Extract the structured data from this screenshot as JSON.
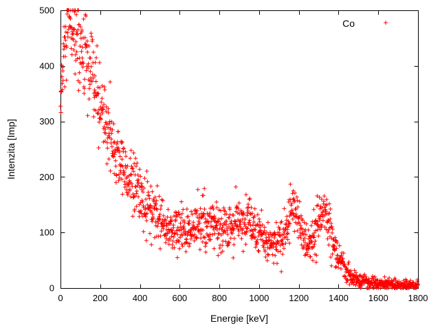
{
  "figure": {
    "background": "#ffffff",
    "axis_color": "#000000",
    "text_color": "#000000"
  },
  "chart_data": {
    "type": "scatter",
    "title": "",
    "xlabel": "Energie [keV]",
    "ylabel": "Intenzita [Imp]",
    "xlim": [
      0,
      1800
    ],
    "ylim": [
      0,
      500
    ],
    "xticks": [
      0,
      200,
      400,
      600,
      800,
      1000,
      1200,
      1400,
      1600,
      1800
    ],
    "yticks": [
      0,
      100,
      200,
      300,
      400,
      500
    ],
    "grid": false,
    "legend": {
      "label": "Co",
      "position": "top-right"
    },
    "series": [
      {
        "name": "Co",
        "color": "#ff0000",
        "marker": "plus",
        "marker_size": 6,
        "n_points": 1500,
        "seed": 12345,
        "noise_model": "gaussian-sqrt",
        "noise_scale": 2.0,
        "peaks_kev": [
          1173,
          1332
        ],
        "profile": [
          [
            0,
            330
          ],
          [
            20,
            420
          ],
          [
            40,
            465
          ],
          [
            70,
            460
          ],
          [
            100,
            430
          ],
          [
            130,
            400
          ],
          [
            160,
            370
          ],
          [
            200,
            330
          ],
          [
            240,
            285
          ],
          [
            280,
            245
          ],
          [
            320,
            215
          ],
          [
            360,
            190
          ],
          [
            400,
            165
          ],
          [
            440,
            145
          ],
          [
            480,
            128
          ],
          [
            520,
            115
          ],
          [
            560,
            105
          ],
          [
            600,
            100
          ],
          [
            640,
            103
          ],
          [
            680,
            115
          ],
          [
            700,
            122
          ],
          [
            720,
            115
          ],
          [
            760,
            108
          ],
          [
            800,
            110
          ],
          [
            840,
            113
          ],
          [
            880,
            118
          ],
          [
            920,
            120
          ],
          [
            950,
            118
          ],
          [
            980,
            105
          ],
          [
            1010,
            92
          ],
          [
            1050,
            82
          ],
          [
            1090,
            80
          ],
          [
            1120,
            90
          ],
          [
            1150,
            125
          ],
          [
            1173,
            152
          ],
          [
            1196,
            128
          ],
          [
            1220,
            95
          ],
          [
            1250,
            78
          ],
          [
            1280,
            95
          ],
          [
            1310,
            125
          ],
          [
            1332,
            138
          ],
          [
            1355,
            115
          ],
          [
            1380,
            75
          ],
          [
            1410,
            45
          ],
          [
            1440,
            28
          ],
          [
            1470,
            18
          ],
          [
            1500,
            13
          ],
          [
            1550,
            9
          ],
          [
            1600,
            7
          ],
          [
            1700,
            6
          ],
          [
            1800,
            6
          ]
        ]
      }
    ]
  }
}
